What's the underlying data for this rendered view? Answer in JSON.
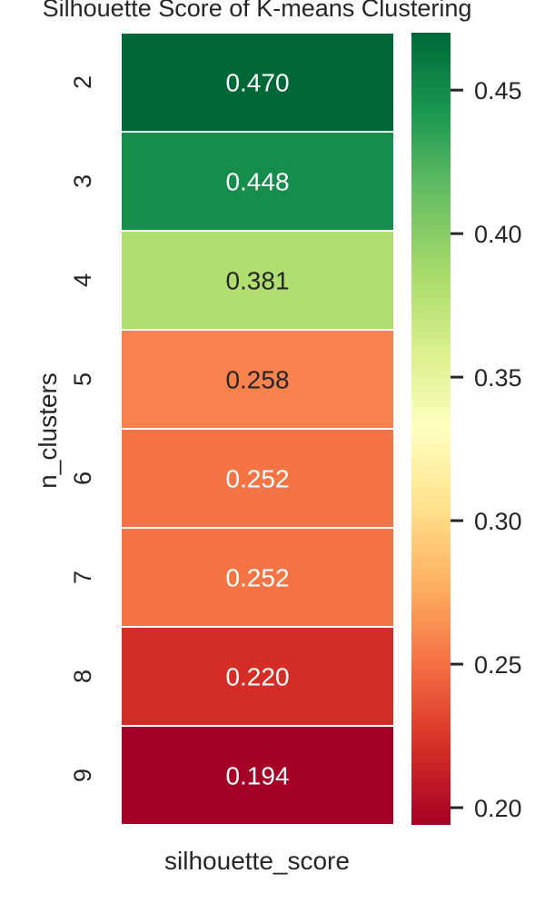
{
  "chart_data": {
    "type": "heatmap",
    "title": "Silhouette Score of K-means Clustering",
    "xlabel": "silhouette_score",
    "ylabel": "n_clusters",
    "columns": [
      "silhouette_score"
    ],
    "rows": [
      "2",
      "3",
      "4",
      "5",
      "6",
      "7",
      "8",
      "9"
    ],
    "values": [
      0.47,
      0.448,
      0.381,
      0.258,
      0.252,
      0.252,
      0.22,
      0.194
    ],
    "cell_labels": [
      "0.470",
      "0.448",
      "0.381",
      "0.258",
      "0.252",
      "0.252",
      "0.220",
      "0.194"
    ],
    "colormap": "RdYlGn",
    "colorbar": {
      "vmin": 0.194,
      "vmax": 0.47,
      "ticks": [
        0.2,
        0.25,
        0.3,
        0.35,
        0.4,
        0.45
      ],
      "tick_labels": [
        "0.20",
        "0.25",
        "0.30",
        "0.35",
        "0.40",
        "0.45"
      ]
    }
  }
}
